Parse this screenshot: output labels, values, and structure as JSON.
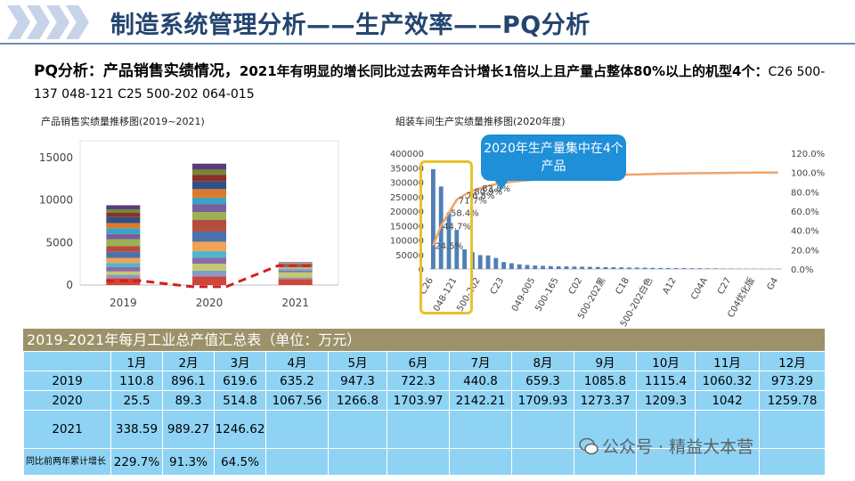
{
  "header": {
    "title": "制造系统管理分析——生产效率——PQ分析"
  },
  "intro": {
    "lead": "PQ分析：产品销售实绩情况，",
    "text": "2021年有明显的增长同比过去两年合计增长1倍以上且产量占整体80%以上的机型4个：",
    "models": "C26 500-137 048-121 C25 500-202 064-015"
  },
  "chart1": {
    "title": "产品销售实绩量推移图(2019~2021)"
  },
  "chart2": {
    "title": "組装车间生产实绩量推移图(2020年度)",
    "callout": "2020年生产量集中在4个产品"
  },
  "chart_data": [
    {
      "type": "bar",
      "stacked": true,
      "title": "产品销售实绩量推移图(2019~2021)",
      "categories": [
        "2019",
        "2020",
        "2021"
      ],
      "y_ticks": [
        "0",
        "5000",
        "10000",
        "15000"
      ],
      "ylim": [
        0,
        17000
      ],
      "colors": [
        "#d0453a",
        "#8a9ac8",
        "#c1cb6d",
        "#8d6aa8",
        "#52b6d0",
        "#f3a153",
        "#4a73ad",
        "#b54d3f",
        "#9bb253",
        "#7b5d9c",
        "#3ca2c0",
        "#dc7a2c",
        "#2e5188",
        "#8b2f27",
        "#6e8a35",
        "#5a3c79"
      ],
      "stacks": [
        [
          800,
          400,
          400,
          500,
          500,
          600,
          700,
          700,
          800,
          600,
          700,
          600,
          700,
          500,
          400,
          500
        ],
        [
          1000,
          700,
          800,
          700,
          800,
          1100,
          1200,
          1400,
          900,
          900,
          800,
          1000,
          900,
          800,
          600,
          700
        ],
        [
          700,
          200,
          600,
          200,
          200,
          200,
          200,
          200,
          100,
          100
        ]
      ],
      "trend_line": [
        500,
        -200,
        2300
      ]
    },
    {
      "type": "bar-line",
      "title": "組装车间生产实绩量推移图(2020年度)",
      "y_left_ticks": [
        "0",
        "50000",
        "100000",
        "150000",
        "200000",
        "250000",
        "300000",
        "350000",
        "400000"
      ],
      "ylim_left": [
        0,
        400000
      ],
      "y_right_ticks": [
        "0.0%",
        "20.0%",
        "40.0%",
        "60.0%",
        "80.0%",
        "100.0%",
        "120.0%"
      ],
      "ylim_right": [
        0,
        120
      ],
      "x_tick_labels": [
        "C26",
        "048-121",
        "500-202",
        "C23",
        "049-005",
        "500-165",
        "C02",
        "500-202黑",
        "C18",
        "500-202白色",
        "A12",
        "C04A",
        "C27",
        "C04优化版",
        "G4"
      ],
      "values": [
        345000,
        285000,
        195000,
        135000,
        68000,
        58000,
        48000,
        47000,
        38000,
        24000,
        20000,
        16000,
        14000,
        12000,
        11000,
        10000,
        9500,
        9000,
        8500,
        8000,
        7500,
        7000,
        6500,
        6000,
        5500,
        5000,
        5000,
        4500,
        4000,
        3500,
        3500,
        3000,
        3000,
        2500,
        2500,
        2000,
        2000,
        1500,
        1500,
        1000,
        1000,
        900,
        800,
        700,
        600
      ],
      "cumulative_pct": [
        24.5,
        44.7,
        58.4,
        71.7,
        76.8,
        80.9,
        83.8,
        86.2,
        87.9,
        89.2,
        90.3,
        91.2,
        92.0,
        92.7,
        93.3,
        93.9,
        94.4,
        94.9,
        95.4,
        95.8,
        96.2,
        96.6,
        96.9,
        97.2,
        97.5,
        97.8,
        98.0,
        98.2,
        98.4,
        98.6,
        98.8,
        99.0,
        99.1,
        99.2,
        99.3,
        99.4,
        99.5,
        99.6,
        99.7,
        99.8,
        99.85,
        99.9,
        99.95,
        99.98,
        100.0
      ],
      "pct_labels": [
        "24.5%",
        "44.7%",
        "58.4%",
        "71.7%",
        "76.8%",
        "80.9%",
        "83.8%"
      ],
      "bar_color": "#4f7fb6",
      "line_color": "#f0a46a"
    },
    {
      "type": "table",
      "title": "2019-2021年每月工业总产值汇总表（单位：万元）",
      "columns": [
        "1月",
        "2月",
        "3月",
        "4月",
        "5月",
        "6月",
        "7月",
        "8月",
        "9月",
        "10月",
        "11月",
        "12月"
      ],
      "rows": [
        {
          "label": "2019",
          "values": [
            "110.8",
            "896.1",
            "619.6",
            "635.2",
            "947.3",
            "722.3",
            "440.8",
            "659.3",
            "1085.8",
            "1115.4",
            "1060.32",
            "973.29"
          ]
        },
        {
          "label": "2020",
          "values": [
            "25.5",
            "89.3",
            "514.8",
            "1067.56",
            "1266.8",
            "1703.97",
            "2142.21",
            "1709.93",
            "1273.37",
            "1209.3",
            "1042",
            "1259.78"
          ]
        },
        {
          "label": "2021",
          "values": [
            "338.59",
            "989.27",
            "1246.62",
            "",
            "",
            "",
            "",
            "",
            "",
            "",
            "",
            ""
          ]
        },
        {
          "label": "同比前两年累计增长",
          "values": [
            "229.7%",
            "91.3%",
            "64.5%",
            "",
            "",
            "",
            "",
            "",
            "",
            "",
            "",
            ""
          ]
        }
      ]
    }
  ],
  "watermark": "公众号 · 精益大本营"
}
